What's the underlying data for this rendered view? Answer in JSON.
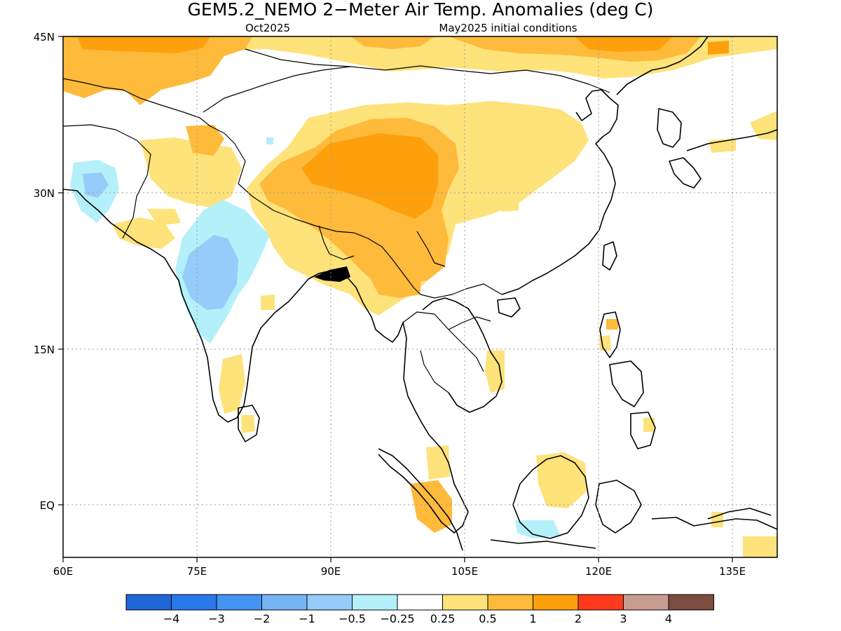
{
  "title": "GEM5.2_NEMO 2−Meter Air Temp. Anomalies (deg C)",
  "valid_month": "Oct2025",
  "initial_conditions": "May2025 initial conditions",
  "axes": {
    "x_ticks": [
      "60E",
      "75E",
      "90E",
      "105E",
      "120E",
      "135E"
    ],
    "y_ticks": [
      "45N",
      "30N",
      "15N",
      "EQ"
    ],
    "lon_range": [
      60,
      140
    ],
    "lat_range": [
      -5,
      45
    ],
    "grid": "dotted"
  },
  "colorbar": {
    "labels": [
      "−4",
      "−3",
      "−2",
      "−1",
      "−0.5",
      "−0.25",
      "0.25",
      "0.5",
      "1",
      "2",
      "3",
      "4"
    ],
    "colors": [
      "#1f66d6",
      "#2a79ea",
      "#4394f0",
      "#76b5f5",
      "#96ccf9",
      "#b4f0fa",
      "#ffffff",
      "#fee27a",
      "#feba3a",
      "#fea00c",
      "#fe3a1c",
      "#c79d90",
      "#7b4d3e"
    ]
  }
}
